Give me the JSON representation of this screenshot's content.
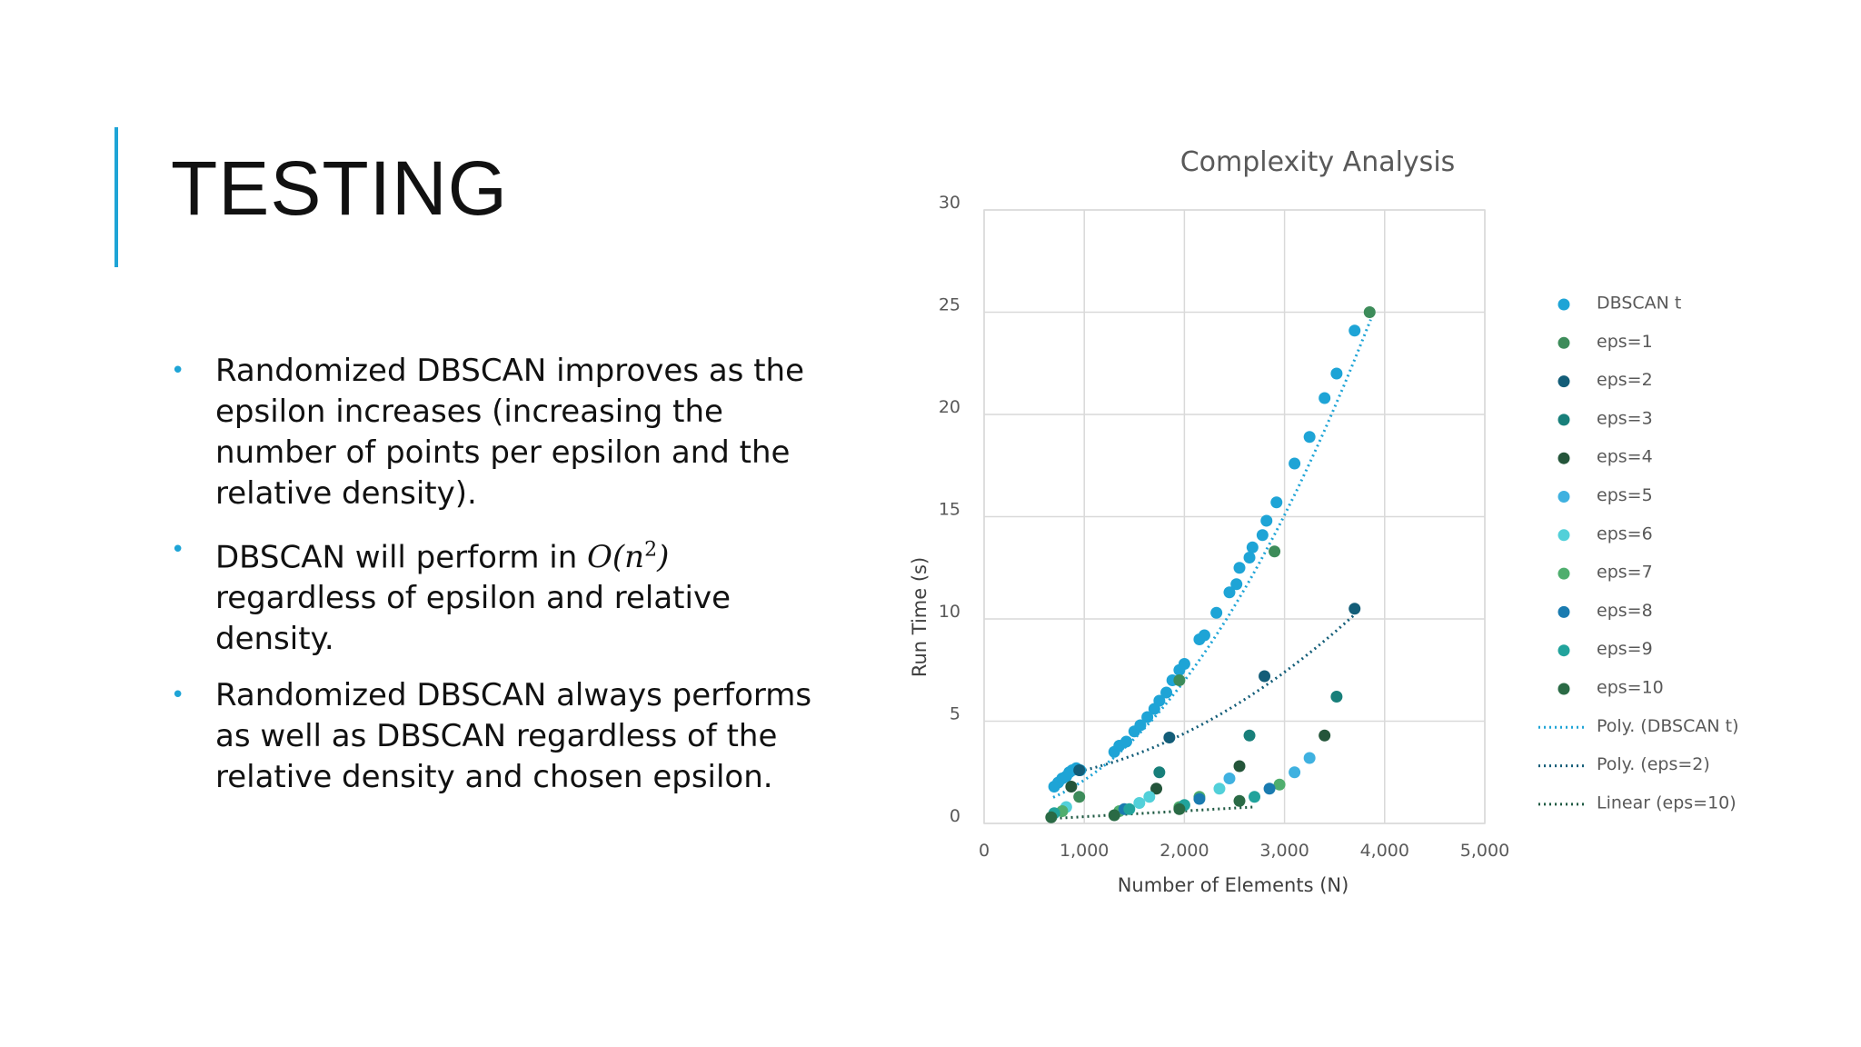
{
  "slide": {
    "title": "TESTING",
    "accent_color": "#1ea4d6",
    "bullets": [
      {
        "text": "Randomized DBSCAN improves as the epsilon increases (increasing the number of points per epsilon and the relative density)."
      },
      {
        "before": "DBSCAN will perform in ",
        "math_base": "O(n",
        "math_exp": "2",
        "math_close": ")",
        "after": " regardless of epsilon and relative density."
      },
      {
        "text": "Randomized DBSCAN always performs as well as DBSCAN regardless of the relative density and chosen epsilon."
      }
    ]
  },
  "chart_data": {
    "type": "scatter",
    "title": "Complexity Analysis",
    "xlabel": "Number of Elements (N)",
    "ylabel": "Run Time (s)",
    "xlim": [
      0,
      5000
    ],
    "ylim": [
      0,
      30
    ],
    "x_ticks": [
      0,
      1000,
      2000,
      3000,
      4000,
      5000
    ],
    "x_tick_labels": [
      "0",
      "1,000",
      "2,000",
      "3,000",
      "4,000",
      "5,000"
    ],
    "y_ticks": [
      0,
      5,
      10,
      15,
      20,
      25,
      30
    ],
    "y_tick_labels": [
      "0",
      "5",
      "10",
      "15",
      "20",
      "25",
      "30"
    ],
    "grid": true,
    "legend_position": "right",
    "series": [
      {
        "name": "DBSCAN t",
        "color": "#1ea4d6",
        "points": [
          [
            700,
            1.8
          ],
          [
            740,
            2.0
          ],
          [
            780,
            2.2
          ],
          [
            820,
            2.3
          ],
          [
            850,
            2.5
          ],
          [
            880,
            2.6
          ],
          [
            920,
            2.7
          ],
          [
            960,
            2.6
          ],
          [
            1300,
            3.5
          ],
          [
            1350,
            3.8
          ],
          [
            1420,
            4.0
          ],
          [
            1500,
            4.5
          ],
          [
            1560,
            4.8
          ],
          [
            1630,
            5.2
          ],
          [
            1700,
            5.6
          ],
          [
            1750,
            6.0
          ],
          [
            1820,
            6.4
          ],
          [
            1880,
            7.0
          ],
          [
            1950,
            7.5
          ],
          [
            2000,
            7.8
          ],
          [
            2150,
            9.0
          ],
          [
            2200,
            9.2
          ],
          [
            2320,
            10.3
          ],
          [
            2450,
            11.3
          ],
          [
            2520,
            11.7
          ],
          [
            2550,
            12.5
          ],
          [
            2650,
            13.0
          ],
          [
            2680,
            13.5
          ],
          [
            2780,
            14.1
          ],
          [
            2820,
            14.8
          ],
          [
            2920,
            15.7
          ],
          [
            3100,
            17.6
          ],
          [
            3250,
            18.9
          ],
          [
            3400,
            20.8
          ],
          [
            3520,
            22.0
          ],
          [
            3700,
            24.1
          ]
        ]
      },
      {
        "name": "eps=1",
        "color": "#3d8c5a",
        "points": [
          [
            950,
            1.3
          ],
          [
            1950,
            7.0
          ],
          [
            2900,
            13.3
          ],
          [
            3850,
            25.0
          ]
        ]
      },
      {
        "name": "eps=2",
        "color": "#135d78",
        "points": [
          [
            950,
            2.6
          ],
          [
            1850,
            4.2
          ],
          [
            2800,
            7.2
          ],
          [
            3700,
            10.5
          ]
        ]
      },
      {
        "name": "eps=3",
        "color": "#187f7a",
        "points": [
          [
            1750,
            2.5
          ],
          [
            2650,
            4.3
          ],
          [
            3520,
            6.2
          ]
        ]
      },
      {
        "name": "eps=4",
        "color": "#24553a",
        "points": [
          [
            870,
            1.8
          ],
          [
            1720,
            1.7
          ],
          [
            2550,
            2.8
          ],
          [
            3400,
            4.3
          ]
        ]
      },
      {
        "name": "eps=5",
        "color": "#3fb1e0",
        "points": [
          [
            2450,
            2.2
          ],
          [
            3100,
            2.5
          ],
          [
            3250,
            3.2
          ]
        ]
      },
      {
        "name": "eps=6",
        "color": "#52d0d9",
        "points": [
          [
            820,
            0.8
          ],
          [
            1550,
            1.0
          ],
          [
            1650,
            1.3
          ],
          [
            2350,
            1.7
          ]
        ]
      },
      {
        "name": "eps=7",
        "color": "#4fae6e",
        "points": [
          [
            780,
            0.6
          ],
          [
            1350,
            0.6
          ],
          [
            1950,
            0.8
          ],
          [
            2150,
            1.3
          ],
          [
            2950,
            1.9
          ]
        ]
      },
      {
        "name": "eps=8",
        "color": "#1a7bb0",
        "points": [
          [
            1400,
            0.7
          ],
          [
            2150,
            1.2
          ],
          [
            2850,
            1.7
          ]
        ]
      },
      {
        "name": "eps=9",
        "color": "#21a39c",
        "points": [
          [
            700,
            0.5
          ],
          [
            1450,
            0.7
          ],
          [
            2000,
            0.9
          ],
          [
            2700,
            1.3
          ]
        ]
      },
      {
        "name": "eps=10",
        "color": "#2a6a45",
        "points": [
          [
            670,
            0.3
          ],
          [
            1300,
            0.4
          ],
          [
            1950,
            0.7
          ],
          [
            2550,
            1.1
          ]
        ]
      }
    ],
    "trendlines": [
      {
        "name": "Poly. (DBSCAN t)",
        "color": "#1ea4d6",
        "kind": "poly2",
        "coefficients": [
          0.5,
          0.0,
          1.62e-06
        ],
        "x_range": [
          690,
          3860
        ]
      },
      {
        "name": "Poly. (eps=2)",
        "color": "#135d78",
        "kind": "poly2",
        "coefficients": [
          2.0,
          0.0,
          6e-07
        ],
        "x_range": [
          900,
          3700
        ]
      },
      {
        "name": "Linear (eps=10)",
        "color": "#1f5a43",
        "kind": "linear",
        "coefficients": [
          0.05,
          0.00028
        ],
        "x_range": [
          650,
          2700
        ]
      }
    ]
  }
}
